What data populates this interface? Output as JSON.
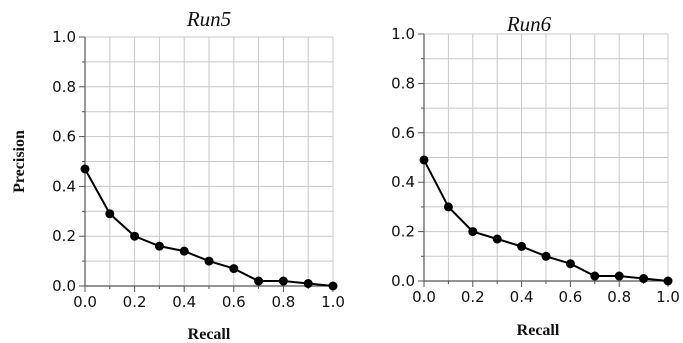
{
  "chart_data": [
    {
      "type": "line",
      "title": "Run5",
      "xlabel": "Recall",
      "ylabel": "Precision",
      "xlim": [
        0.0,
        1.0
      ],
      "ylim": [
        0.0,
        1.0
      ],
      "x_ticks": [
        "0.0",
        "0.2",
        "0.4",
        "0.6",
        "0.8",
        "1.0"
      ],
      "y_ticks": [
        "0.0",
        "0.2",
        "0.4",
        "0.6",
        "0.8",
        "1.0"
      ],
      "grid": true,
      "series": [
        {
          "x": [
            0.0,
            0.1,
            0.2,
            0.3,
            0.4,
            0.5,
            0.6,
            0.7,
            0.8,
            0.9,
            1.0
          ],
          "values": [
            0.47,
            0.29,
            0.2,
            0.16,
            0.14,
            0.1,
            0.07,
            0.02,
            0.02,
            0.01,
            0.0
          ]
        }
      ]
    },
    {
      "type": "line",
      "title": "Run6",
      "xlabel": "Recall",
      "ylabel": "",
      "xlim": [
        0.0,
        1.0
      ],
      "ylim": [
        0.0,
        1.0
      ],
      "x_ticks": [
        "0.0",
        "0.2",
        "0.4",
        "0.6",
        "0.8",
        "1.0"
      ],
      "y_ticks": [
        "0.0",
        "0.2",
        "0.4",
        "0.6",
        "0.8",
        "1.0"
      ],
      "grid": true,
      "series": [
        {
          "x": [
            0.0,
            0.1,
            0.2,
            0.3,
            0.4,
            0.5,
            0.6,
            0.7,
            0.8,
            0.9,
            1.0
          ],
          "values": [
            0.49,
            0.3,
            0.2,
            0.17,
            0.14,
            0.1,
            0.07,
            0.02,
            0.02,
            0.01,
            0.0
          ]
        }
      ]
    }
  ]
}
